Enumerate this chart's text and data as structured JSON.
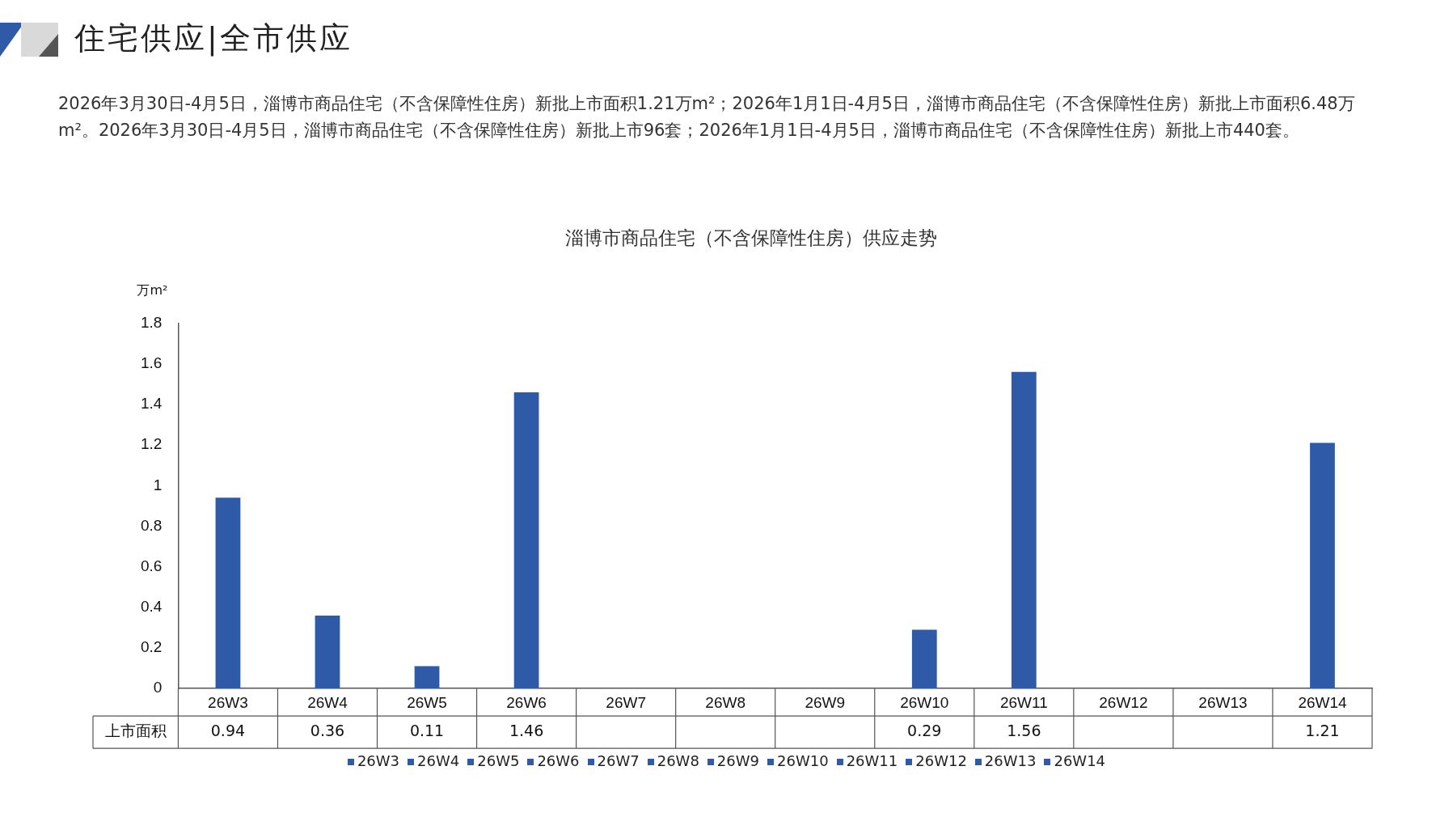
{
  "chart_data": {
    "type": "bar",
    "title": "淄博市商品住宅（不含保障性住房）供应走势",
    "ylabel": "万m²",
    "annotations": [
      "住宅供应|全市供应",
      "2026年3月30日-4月5日，淄博市商品住宅（不含保障性住房）新批上市面积1.21万m²；2026年1月1日-4月5日，淄博市商品住宅（不含保障性住房）新批上市面积6.48万m²。2026年3月30日-4月5日，淄博市商品住宅（不含保障性住房）新批上市96套；2026年1月1日-4月5日，淄博市商品住宅（不含保障性住房）新批上市440套。"
    ],
    "categories": [
      "26W3",
      "26W4",
      "26W5",
      "26W6",
      "26W7",
      "26W8",
      "26W9",
      "26W10",
      "26W11",
      "26W12",
      "26W13",
      "26W14"
    ],
    "series": [
      {
        "name": "上市面积",
        "color": "#2e5aa7",
        "values": [
          0.94,
          0.36,
          0.11,
          1.46,
          null,
          null,
          null,
          0.29,
          1.56,
          null,
          null,
          1.21
        ]
      }
    ],
    "ylim": [
      0,
      1.8
    ],
    "yticks": [
      0,
      0.2,
      0.4,
      0.6,
      0.8,
      1,
      1.2,
      1.4,
      1.6,
      1.8
    ],
    "data_labels": true,
    "grid": false,
    "legend": "bottom"
  }
}
